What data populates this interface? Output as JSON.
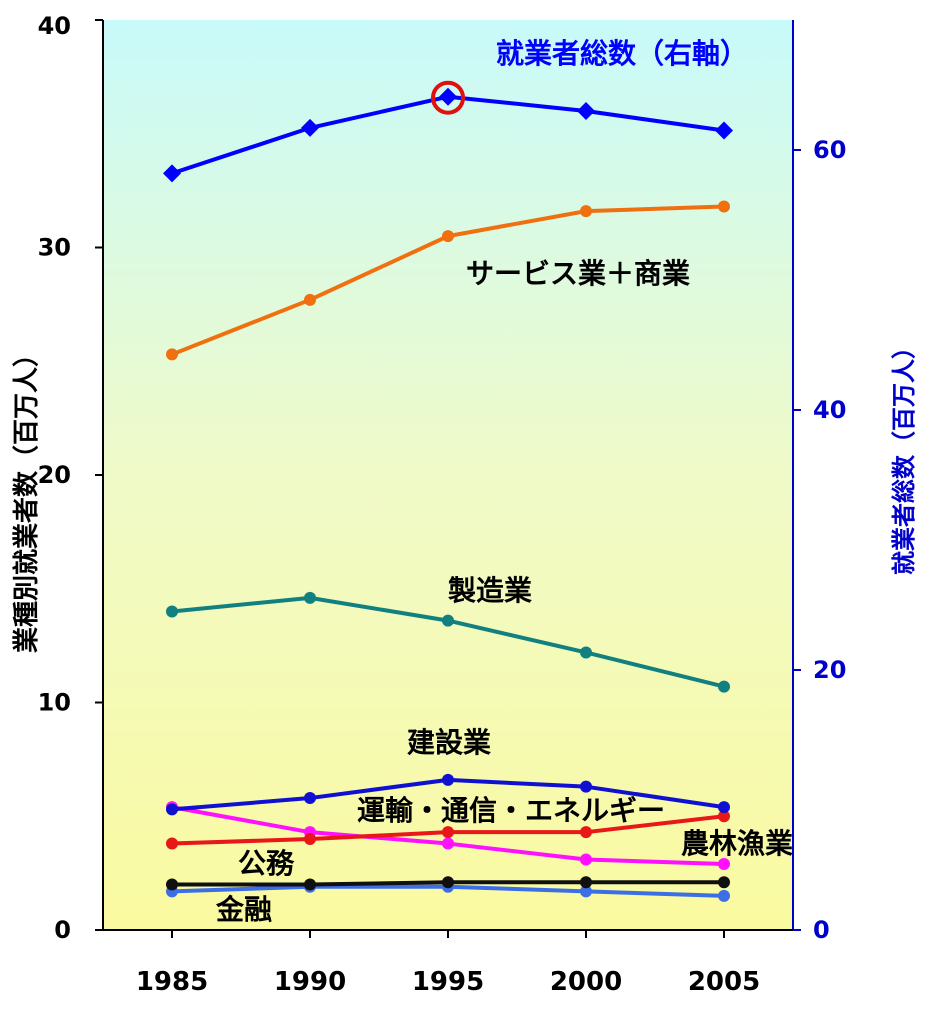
{
  "chart_data": {
    "type": "line",
    "x": [
      1985,
      1990,
      1995,
      2000,
      2005
    ],
    "xlim": [
      1982.5,
      2007.5
    ],
    "left_axis": {
      "label": "業種別就業者数（百万人）",
      "ylim": [
        0,
        40
      ],
      "ticks": [
        0,
        10,
        20,
        30,
        40
      ]
    },
    "right_axis": {
      "label": "就業者総数（百万人）",
      "ylim": [
        0,
        70
      ],
      "ticks": [
        0,
        20,
        40,
        60
      ],
      "color": "#0000CC"
    },
    "grid": false,
    "series": [
      {
        "name": "就業者総数（右軸）",
        "axis": "right",
        "color": "#0000FF",
        "marker": "diamond",
        "values": [
          58.2,
          61.7,
          64.1,
          63.0,
          61.5
        ]
      },
      {
        "name": "サービス業＋商業",
        "axis": "left",
        "color": "#F07010",
        "marker": "circle",
        "values": [
          25.3,
          27.7,
          30.5,
          31.6,
          31.8
        ]
      },
      {
        "name": "製造業",
        "axis": "left",
        "color": "#128080",
        "marker": "circle",
        "values": [
          14.0,
          14.6,
          13.6,
          12.2,
          10.7
        ]
      },
      {
        "name": "建設業",
        "axis": "left",
        "color": "#1010D0",
        "marker": "circle",
        "values": [
          5.3,
          5.8,
          6.6,
          6.3,
          5.4
        ]
      },
      {
        "name": "運輸・通信・エネルギー",
        "axis": "left",
        "color": "#E81818",
        "marker": "circle",
        "values": [
          3.8,
          4.0,
          4.3,
          4.3,
          5.0
        ]
      },
      {
        "name": "農林漁業",
        "axis": "left",
        "color": "#FF10FF",
        "marker": "circle",
        "values": [
          5.4,
          4.3,
          3.8,
          3.1,
          2.9
        ]
      },
      {
        "name": "公務",
        "axis": "left",
        "color": "#101010",
        "marker": "circle",
        "values": [
          2.0,
          2.0,
          2.1,
          2.1,
          2.1
        ]
      },
      {
        "name": "金融",
        "axis": "left",
        "color": "#3C6EE6",
        "marker": "circle",
        "values": [
          1.7,
          1.9,
          1.9,
          1.7,
          1.5
        ]
      }
    ],
    "highlight": {
      "series": "就業者総数（右軸）",
      "x": 1995,
      "color": "#E01010"
    }
  }
}
